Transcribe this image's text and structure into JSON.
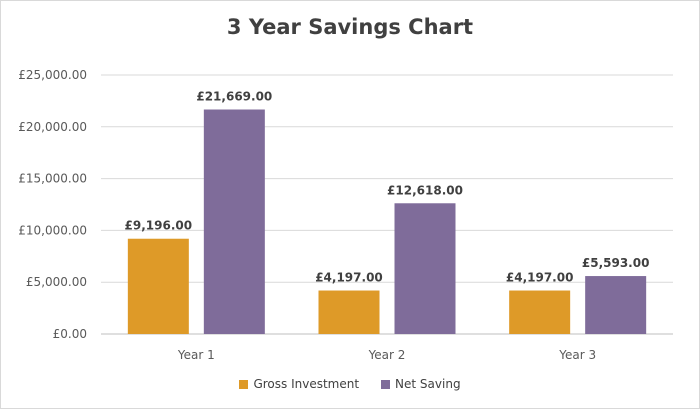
{
  "chart_data": {
    "type": "bar",
    "title": "3 Year Savings Chart",
    "categories": [
      "Year 1",
      "Year 2",
      "Year 3"
    ],
    "series": [
      {
        "name": "Gross Investment",
        "color": "#DE9A28",
        "values": [
          9196,
          4197,
          4197
        ],
        "labels": [
          "£9,196.00",
          "£4,197.00",
          "£4,197.00"
        ]
      },
      {
        "name": "Net Saving",
        "color": "#7F6C9A",
        "values": [
          21669,
          12618,
          5593
        ],
        "labels": [
          "£21,669.00",
          "£12,618.00",
          "£5,593.00"
        ]
      }
    ],
    "ylim": [
      0,
      25000
    ],
    "ytick_values": [
      0,
      5000,
      10000,
      15000,
      20000,
      25000
    ],
    "ytick_labels": [
      "£0.00",
      "£5,000.00",
      "£10,000.00",
      "£15,000.00",
      "£20,000.00",
      "£25,000.00"
    ],
    "grid": true,
    "legend": "bottom",
    "xlabel": "",
    "ylabel": ""
  }
}
